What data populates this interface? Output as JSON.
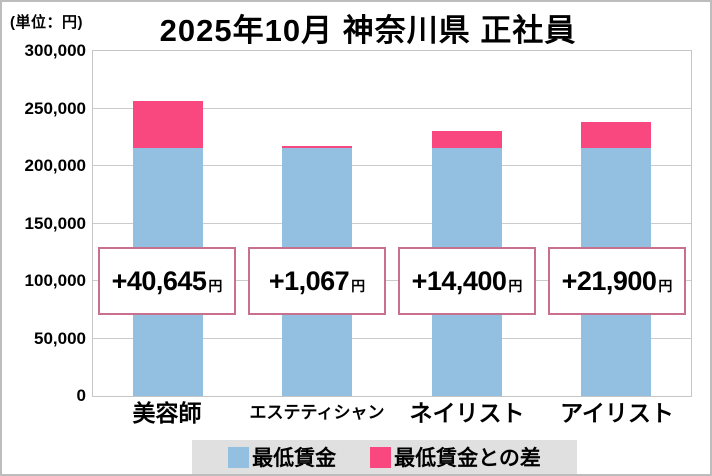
{
  "chart_data": {
    "type": "bar",
    "subtype": "stacked",
    "title": "2025年10月 神奈川県 正社員",
    "unit_label": "(単位：円)",
    "categories": [
      "美容師",
      "エステティシャン",
      "ネイリスト",
      "アイリスト"
    ],
    "series": [
      {
        "name": "最低賃金",
        "color": "#93BFE1",
        "values": [
          216100,
          216100,
          216100,
          216100
        ]
      },
      {
        "name": "最低賃金との差",
        "color": "#F8487F",
        "values": [
          40645,
          1067,
          14400,
          21900
        ]
      }
    ],
    "totals": [
      256745,
      217167,
      230500,
      238000
    ],
    "diff_labels": [
      "+40,645",
      "+1,067",
      "+14,400",
      "+21,900"
    ],
    "diff_suffix": "円",
    "ylim": [
      0,
      300000
    ],
    "ytick_step": 50000,
    "ytick_labels": [
      "300,000",
      "250,000",
      "200,000",
      "150,000",
      "100,000",
      "50,000",
      "0"
    ],
    "grid": true,
    "legend_position": "bottom"
  },
  "colors": {
    "min_wage_blue": "#93BFE1",
    "diff_pink": "#F8487F",
    "value_box_border": "#C9708F",
    "gridline": "#CBCBCB",
    "legend_background": "#E0E0E0",
    "text": "#000000"
  }
}
